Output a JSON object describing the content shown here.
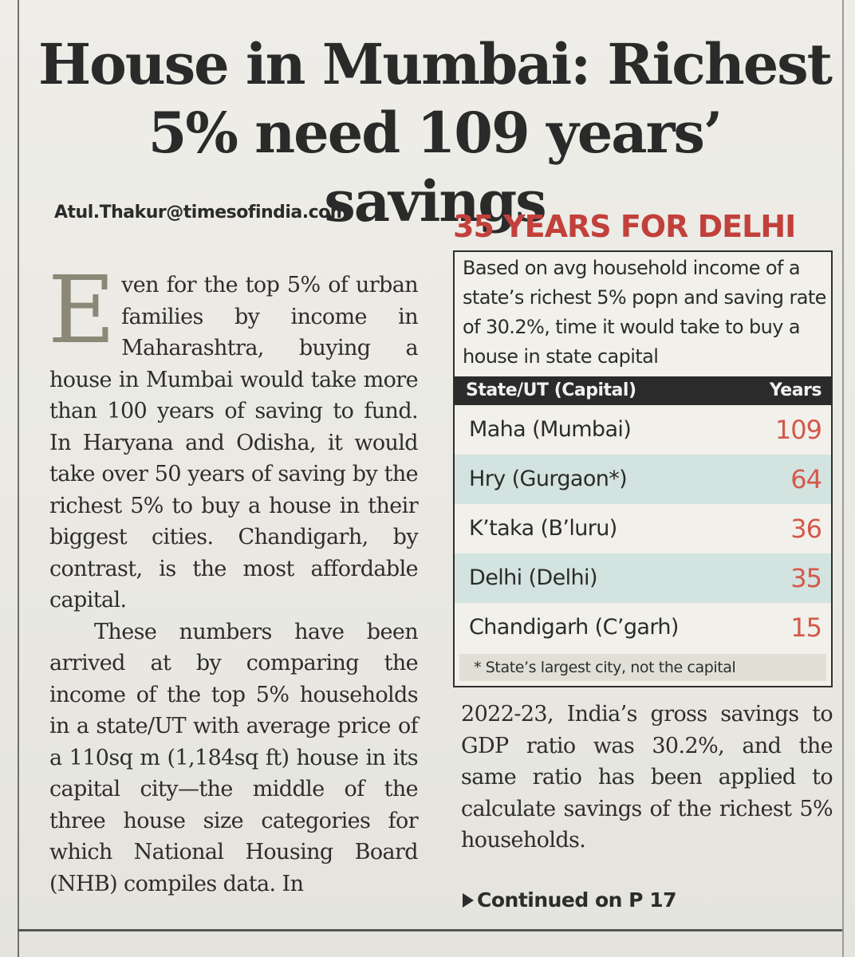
{
  "article": {
    "headline_line1": "House in Mumbai: Richest",
    "headline_line2": "5% need 109 years’ savings",
    "byline": "Atul.Thakur@timesofindia.com",
    "dropcap": "E",
    "para1": "ven for the top 5% of urban families by income in Maharashtra, buying a house in Mumbai would take more than 100 years of saving to fund. In Haryana and Odisha, it would take over 50 years of saving by the richest 5% to buy a house in their biggest cities. Chandigarh, by contrast, is the most affordable capital.",
    "para2": "These numbers have been arrived at by comparing the income of the top 5% households in a state/UT with average price of a 110sq m (1,184sq ft) house in its capital city—the middle of the three house size categories for which National Housing Board (NHB) compiles data. In",
    "para3": "2022-23, India’s gross savings to GDP ratio was 30.2%, and the same ratio has been applied to calculate savings of the richest 5% households.",
    "continued": "Continued on P 17"
  },
  "infobox": {
    "title": "35 YEARS FOR DELHI",
    "description": "Based on avg household income of a state’s richest 5% popn and saving rate of 30.2%, time it would take to buy a house in state capital",
    "col_state": "State/UT (Capital)",
    "col_years": "Years",
    "rows": [
      {
        "state": "Maha (Mumbai)",
        "years": "109"
      },
      {
        "state": "Hry (Gurgaon*)",
        "years": "64"
      },
      {
        "state": "K’taka (B’luru)",
        "years": "36"
      },
      {
        "state": "Delhi (Delhi)",
        "years": "35"
      },
      {
        "state": "Chandigarh (C’garh)",
        "years": "15"
      }
    ],
    "footnote": "* State’s largest city, not the capital"
  },
  "colors": {
    "title_red": "#c2403b",
    "value_red": "#d4584a",
    "row_shade": "#d3e3df",
    "header_bg": "#2b2b2b"
  }
}
